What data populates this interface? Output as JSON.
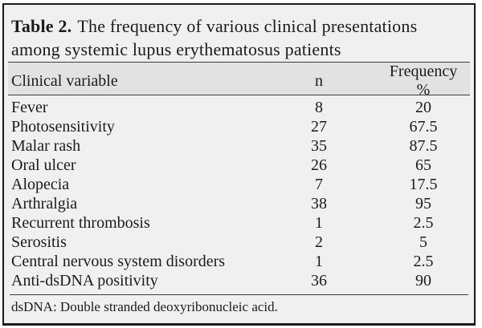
{
  "table": {
    "title_prefix": "Table 2.",
    "title_line1": "The frequency of various clinical presentations",
    "title_line2": "among systemic lupus erythematosus patients",
    "columns": {
      "variable": "Clinical variable",
      "n": "n",
      "frequency": "Frequency %"
    },
    "rows": [
      {
        "variable": "Fever",
        "n": "8",
        "frequency": "20"
      },
      {
        "variable": "Photosensitivity",
        "n": "27",
        "frequency": "67.5"
      },
      {
        "variable": "Malar rash",
        "n": "35",
        "frequency": "87.5"
      },
      {
        "variable": "Oral ulcer",
        "n": "26",
        "frequency": "65"
      },
      {
        "variable": "Alopecia",
        "n": "7",
        "frequency": "17.5"
      },
      {
        "variable": "Arthralgia",
        "n": "38",
        "frequency": "95"
      },
      {
        "variable": "Recurrent thrombosis",
        "n": "1",
        "frequency": "2.5"
      },
      {
        "variable": "Serositis",
        "n": "2",
        "frequency": "5"
      },
      {
        "variable": "Central nervous system disorders",
        "n": "1",
        "frequency": "2.5"
      },
      {
        "variable": "Anti-dsDNA positivity",
        "n": "36",
        "frequency": "90"
      }
    ],
    "footnote": "dsDNA: Double stranded deoxyribonucleic acid."
  },
  "colors": {
    "page_background": "#f0f0f1",
    "header_band_background": "#e2e2e3",
    "frame_border": "#1a1a1a",
    "rule_line": "#3c3c3c",
    "text": "#1b1b1b"
  }
}
